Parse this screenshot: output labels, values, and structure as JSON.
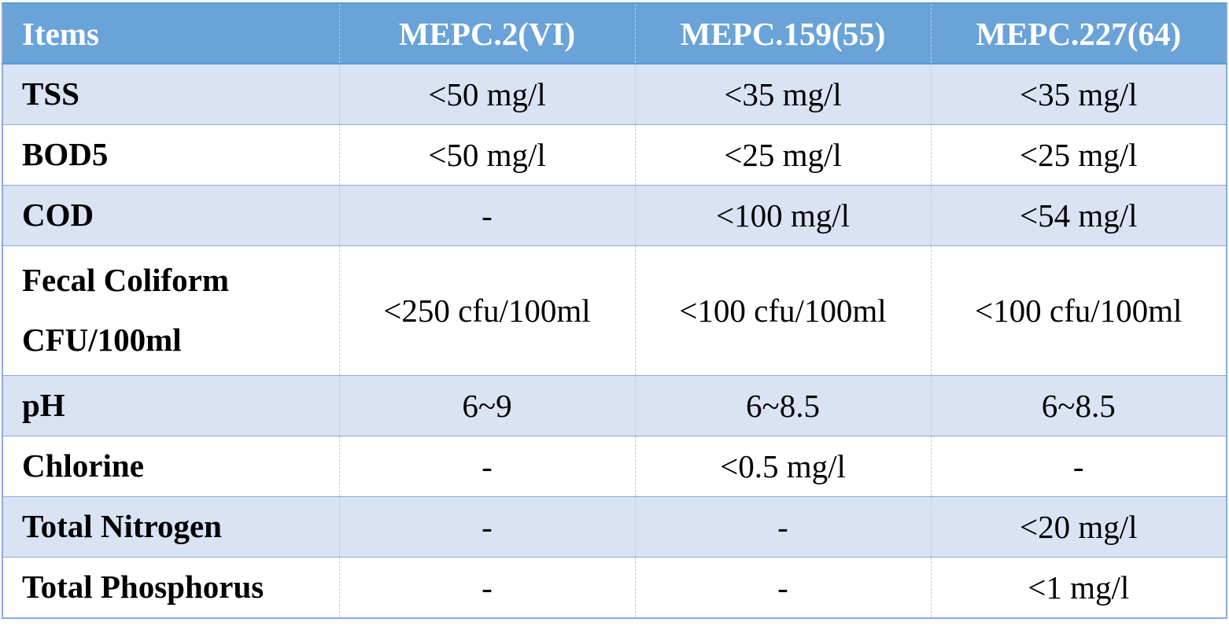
{
  "table": {
    "headers": [
      "Items",
      "MEPC.2(VI)",
      "MEPC.159(55)",
      "MEPC.227(64)"
    ],
    "rows": [
      {
        "item": [
          "TSS"
        ],
        "values": [
          "<50 mg/l",
          "<35 mg/l",
          "<35 mg/l"
        ]
      },
      {
        "item": [
          "BOD5"
        ],
        "values": [
          "<50 mg/l",
          "<25 mg/l",
          "<25 mg/l"
        ]
      },
      {
        "item": [
          "COD"
        ],
        "values": [
          "-",
          "<100 mg/l",
          "<54 mg/l"
        ]
      },
      {
        "item": [
          "Fecal Coliform",
          "CFU/100ml"
        ],
        "values": [
          "<250 cfu/100ml",
          "<100 cfu/100ml",
          "<100 cfu/100ml"
        ]
      },
      {
        "item": [
          "pH"
        ],
        "values": [
          "6~9",
          "6~8.5",
          "6~8.5"
        ]
      },
      {
        "item": [
          "Chlorine"
        ],
        "values": [
          "-",
          "<0.5 mg/l",
          "-"
        ]
      },
      {
        "item": [
          "Total Nitrogen"
        ],
        "values": [
          "-",
          "-",
          "<20 mg/l"
        ]
      },
      {
        "item": [
          "Total Phosphorus"
        ],
        "values": [
          "-",
          "-",
          "<1 mg/l"
        ]
      }
    ]
  },
  "colors": {
    "header_bg": "#6aa3d8",
    "band_bg": "#dae3f3",
    "plain_bg": "#ffffff",
    "border": "#8eaadb"
  }
}
